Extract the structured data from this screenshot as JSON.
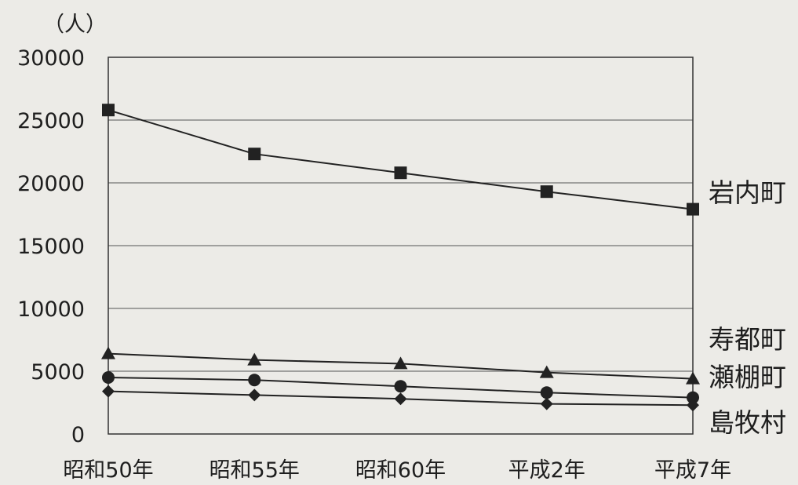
{
  "chart_data": {
    "type": "line",
    "unit_label": "（人）",
    "categories": [
      "昭和50年",
      "昭和55年",
      "昭和60年",
      "平成2年",
      "平成7年"
    ],
    "ylim": [
      0,
      30000
    ],
    "yticks": [
      "30000",
      "25000",
      "20000",
      "15000",
      "10000",
      "5000",
      "0"
    ],
    "grid": true,
    "series": [
      {
        "name": "岩内町",
        "marker": "square",
        "values": [
          25800,
          22300,
          20800,
          19300,
          17900
        ]
      },
      {
        "name": "寿都町",
        "marker": "triangle",
        "values": [
          6400,
          5900,
          5600,
          4900,
          4400
        ]
      },
      {
        "name": "瀬棚町",
        "marker": "circle",
        "values": [
          4500,
          4300,
          3800,
          3300,
          2900
        ]
      },
      {
        "name": "島牧村",
        "marker": "diamond",
        "values": [
          3400,
          3100,
          2800,
          2400,
          2300
        ]
      }
    ]
  }
}
